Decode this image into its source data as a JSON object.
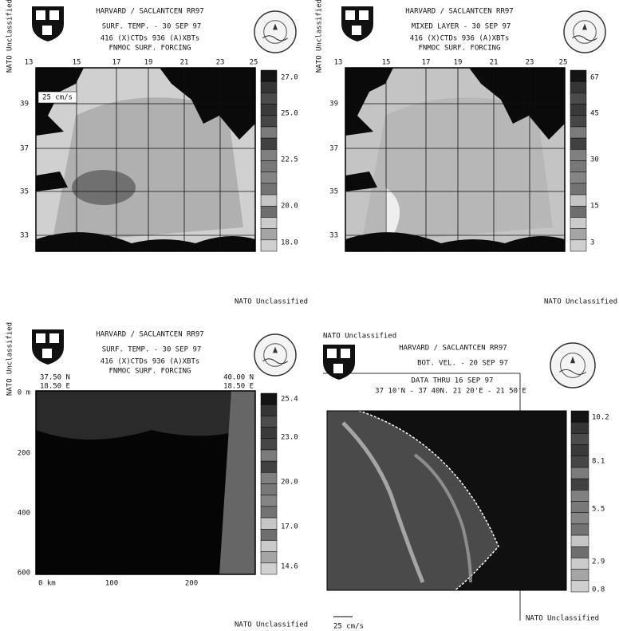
{
  "panels": [
    {
      "side_label": "NATO Unclassified",
      "header": "HARVARD / SACLANTCEN RR97",
      "title": "SURF. TEMP. - 30 SEP 97",
      "line1": "416 (X)CTDs   936 (A)XBTs",
      "line2": "FNMOC SURF. FORCING",
      "x_labels": [
        "13",
        "15",
        "17",
        "19",
        "21",
        "23",
        "25"
      ],
      "y_labels": [
        "39",
        "37",
        "35",
        "33"
      ],
      "scale_label": "25 cm/s",
      "colorbar_labels": [
        "27.0",
        "25.0",
        "22.5",
        "20.0",
        "18.0"
      ],
      "footer": "NATO Unclassified"
    },
    {
      "side_label": "NATO Unclassified",
      "header": "HARVARD / SACLANTCEN RR97",
      "title": "MIXED LAYER - 30 SEP 97",
      "line1": "416 (X)CTDs   936 (A)XBTs",
      "line2": "FNMOC SURF. FORCING",
      "x_labels": [
        "13",
        "15",
        "17",
        "19",
        "21",
        "23",
        "25"
      ],
      "y_labels": [
        "39",
        "37",
        "35",
        "33"
      ],
      "colorbar_labels": [
        "67",
        "45",
        "30",
        "15",
        "3"
      ],
      "footer": "NATO Unclassified"
    },
    {
      "side_label": "NATO Unclassified",
      "header": "HARVARD / SACLANTCEN RR97",
      "title": "SURF. TEMP. - 30 SEP 97",
      "line1": "416 (X)CTDs   936 (A)XBTs",
      "line2": "FNMOC SURF. FORCING",
      "corner_labels": [
        "37.50 N",
        "18.50 E",
        "40.00 N",
        "18.50 E"
      ],
      "x_labels": [
        "0 km",
        "100",
        "200"
      ],
      "y_labels": [
        "0 m",
        "200",
        "400",
        "600"
      ],
      "colorbar_labels": [
        "25.4",
        "23.0",
        "20.0",
        "17.0",
        "14.6"
      ],
      "footer": "NATO Unclassified"
    },
    {
      "side_label": "NATO Unclassified",
      "header": "HARVARD / SACLANTCEN RR97",
      "title": "BOT. VEL. - 20 SEP 97",
      "line1": "DATA THRU 16 SEP 97",
      "line2": "37 10'N - 37 40N.   21 20'E - 21 50'E",
      "scale_label": "25 cm/s",
      "colorbar_labels": [
        "10.2",
        "8.1",
        "5.5",
        "2.9",
        "0.8"
      ],
      "footer": "NATO Unclassified"
    }
  ]
}
